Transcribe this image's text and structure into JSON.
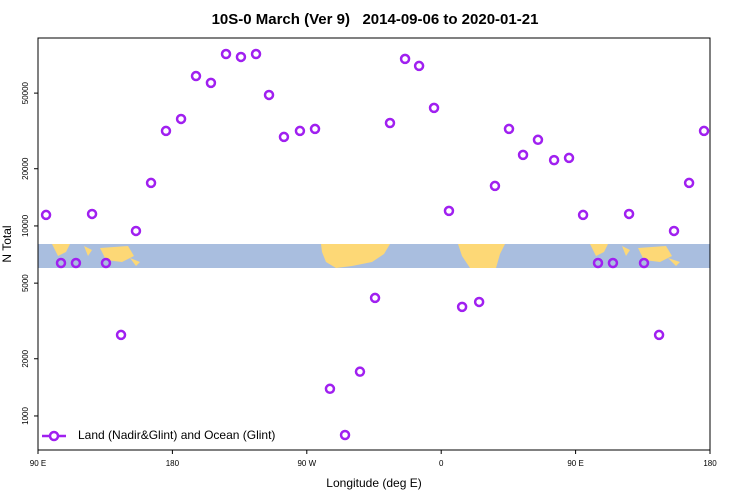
{
  "chart_data": {
    "type": "scatter",
    "title": "10S-0 March (Ver 9)   2014-09-06 to 2020-01-21",
    "x_label": "Longitude (deg E)",
    "y_label": "N Total",
    "yscale": "log",
    "legend": "bottom-left",
    "xlim": [
      90,
      540
    ],
    "ylim": [
      662,
      97500
    ],
    "xticks": [
      {
        "value": 90,
        "label": "90 E"
      },
      180,
      {
        "value": 270,
        "label": "90 W"
      },
      {
        "value": 360,
        "label": "0"
      },
      {
        "value": 450,
        "label": "90 E"
      },
      {
        "value": 540,
        "label": "180"
      }
    ],
    "yticks": [
      1000,
      2000,
      5000,
      10000,
      20000,
      50000
    ],
    "series": [
      {
        "name": "Land (Nadir&Glint) and Ocean (Glint)",
        "color": "#a020f0",
        "x": [
          95.4,
          105.4,
          115.4,
          126.2,
          135.5,
          145.6,
          155.6,
          165.7,
          175.7,
          185.8,
          195.8,
          205.8,
          215.9,
          225.9,
          236.0,
          244.7,
          254.7,
          265.4,
          275.5,
          285.5,
          295.6,
          305.6,
          315.7,
          325.7,
          335.8,
          345.2,
          355.2,
          365.2,
          374.0,
          385.4,
          396.0,
          405.4,
          414.8,
          424.8,
          435.6,
          445.6,
          455.0,
          465.0,
          475.0,
          485.8,
          495.8,
          505.9,
          515.9,
          526.0,
          536.0
        ],
        "values": [
          11430,
          6380,
          6380,
          11560,
          6380,
          2670,
          9410,
          16840,
          31620,
          36560,
          61500,
          56600,
          80300,
          77500,
          80300,
          48900,
          29400,
          31620,
          32400,
          1390,
          794,
          1710,
          4180,
          34800,
          75700,
          69500,
          41800,
          12000,
          3750,
          3980,
          16240,
          32400,
          23650,
          28400,
          22200,
          22800,
          11430,
          6380,
          6380,
          11560,
          6380,
          2670,
          9410,
          16840,
          31620
        ]
      }
    ]
  }
}
